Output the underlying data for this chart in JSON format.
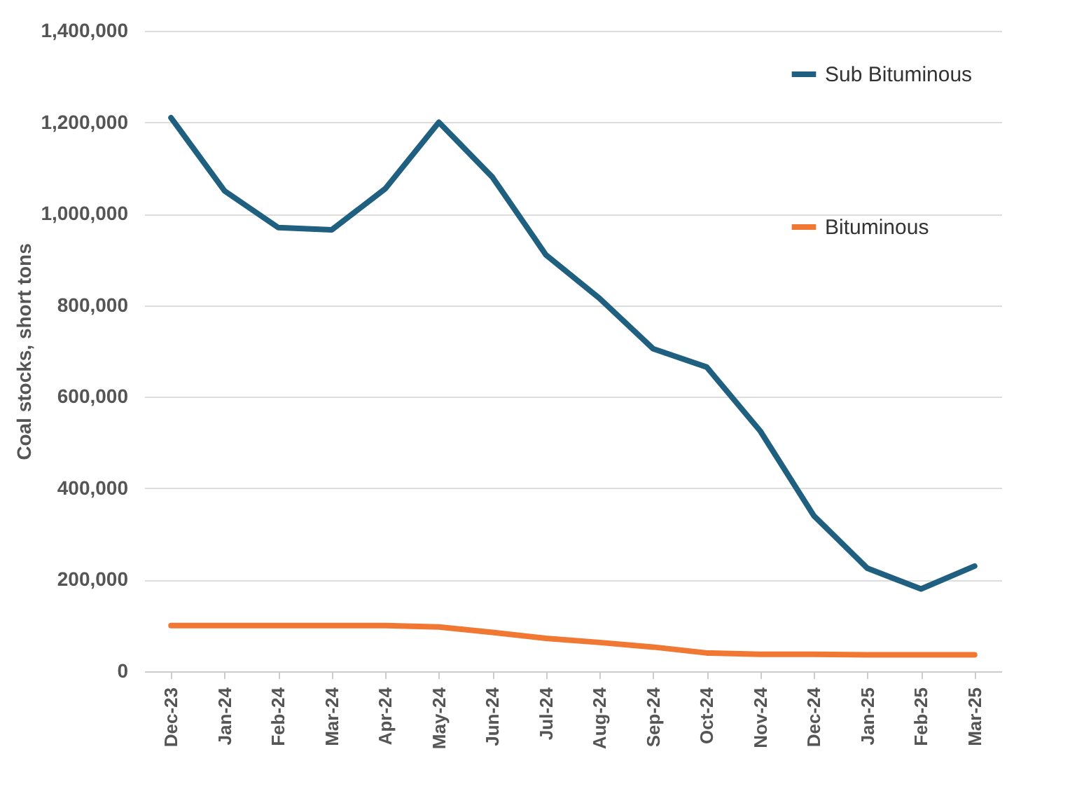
{
  "chart_data": {
    "type": "line",
    "ylabel": "Coal stocks, short tons",
    "categories": [
      "Dec-23",
      "Jan-24",
      "Feb-24",
      "Mar-24",
      "Apr-24",
      "May-24",
      "Jun-24",
      "Jul-24",
      "Aug-24",
      "Sep-24",
      "Oct-24",
      "Nov-24",
      "Dec-24",
      "Jan-25",
      "Feb-25",
      "Mar-25"
    ],
    "series": [
      {
        "name": "Sub Bituminous",
        "color": "#1f5f7f",
        "values": [
          1210000,
          1050000,
          970000,
          965000,
          1055000,
          1200000,
          1080000,
          910000,
          815000,
          705000,
          665000,
          525000,
          340000,
          225000,
          180000,
          230000
        ]
      },
      {
        "name": "Bituminous",
        "color": "#f07832",
        "values": [
          100000,
          100000,
          100000,
          100000,
          100000,
          97000,
          85000,
          72000,
          63000,
          53000,
          40000,
          37000,
          37000,
          36000,
          36000,
          36000
        ]
      }
    ],
    "ylim": [
      0,
      1400000
    ],
    "yticks": [
      0,
      {
        "value": 200000,
        "label": "200,000"
      },
      {
        "value": 400000,
        "label": "400,000"
      },
      {
        "value": 600000,
        "label": "600,000"
      },
      {
        "value": 800000,
        "label": "800,000"
      },
      {
        "value": 1000000,
        "label": "1,000,000"
      },
      {
        "value": 1200000,
        "label": "1,200,000"
      },
      {
        "value": 1400000,
        "label": "1,400,000"
      }
    ],
    "grid": "y",
    "legend": "top right",
    "marker": "none",
    "line_style": "solid"
  }
}
